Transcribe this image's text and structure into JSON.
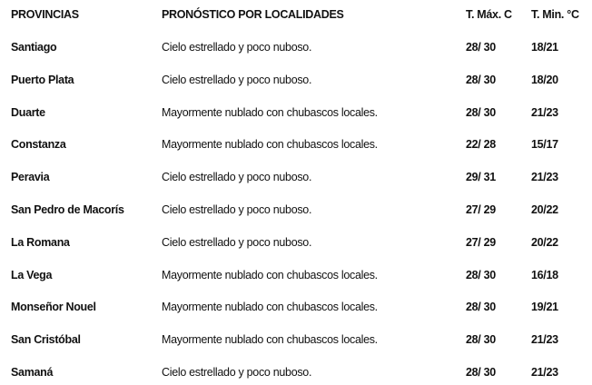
{
  "headers": [
    "PROVINCIAS",
    "PRONÓSTICO POR LOCALIDADES",
    "T. Máx. C",
    "T. Min. °C"
  ],
  "rows": [
    {
      "provincia": "Santiago",
      "pronostico": "Cielo estrellado y poco nuboso.",
      "max": "28/ 30",
      "min": "18/21"
    },
    {
      "provincia": "Puerto Plata",
      "pronostico": "Cielo estrellado y poco nuboso.",
      "max": "28/ 30",
      "min": "18/20"
    },
    {
      "provincia": "Duarte",
      "pronostico": "Mayormente nublado con chubascos locales.",
      "max": "28/ 30",
      "min": "21/23"
    },
    {
      "provincia": "Constanza",
      "pronostico": "Mayormente nublado con chubascos locales.",
      "max": "22/ 28",
      "min": "15/17"
    },
    {
      "provincia": "Peravia",
      "pronostico": "Cielo estrellado y poco nuboso.",
      "max": "29/ 31",
      "min": "21/23"
    },
    {
      "provincia": "San Pedro de Macorís",
      "pronostico": "Cielo estrellado y poco nuboso.",
      "max": "27/ 29",
      "min": "20/22"
    },
    {
      "provincia": "La Romana",
      "pronostico": "Cielo estrellado y poco nuboso.",
      "max": "27/ 29",
      "min": "20/22"
    },
    {
      "provincia": "La Vega",
      "pronostico": "Mayormente nublado con chubascos locales.",
      "max": "28/ 30",
      "min": "16/18"
    },
    {
      "provincia": "Monseñor Nouel",
      "pronostico": "Mayormente nublado con chubascos locales.",
      "max": "28/ 30",
      "min": "19/21"
    },
    {
      "provincia": "San Cristóbal",
      "pronostico": "Mayormente nublado con chubascos locales.",
      "max": "28/ 30",
      "min": "21/23"
    },
    {
      "provincia": "Samaná",
      "pronostico": "Cielo estrellado y poco nuboso.",
      "max": "28/ 30",
      "min": "21/23"
    }
  ]
}
